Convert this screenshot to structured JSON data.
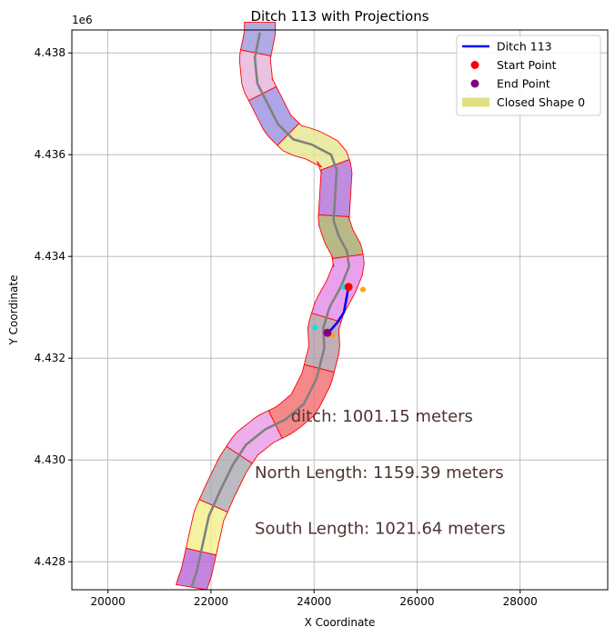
{
  "chart_data": {
    "type": "line",
    "title": "Ditch 113 with Projections",
    "xlabel": "X Coordinate",
    "ylabel": "Y Coordinate",
    "y_offset_label": "1e6",
    "xlim": [
      19300,
      29700
    ],
    "ylim": [
      4.42745,
      4.43845
    ],
    "y_multiplier": 1000000,
    "grid": true,
    "x_ticks": [
      20000,
      22000,
      24000,
      26000,
      28000
    ],
    "x_tick_labels": [
      "20000",
      "22000",
      "24000",
      "26000",
      "28000"
    ],
    "y_ticks": [
      4.428,
      4.43,
      4.432,
      4.434,
      4.436,
      4.438
    ],
    "y_tick_labels": [
      "4.428",
      "4.430",
      "4.432",
      "4.434",
      "4.436",
      "4.438"
    ],
    "legend_position": "top-right",
    "legend": [
      {
        "label": "Ditch 113",
        "kind": "line",
        "color": "#0000ff"
      },
      {
        "label": "Start Point",
        "kind": "point",
        "color": "#ff0000"
      },
      {
        "label": "End Point",
        "kind": "point",
        "color": "#800080"
      },
      {
        "label": "Closed Shape 0",
        "kind": "patch",
        "color": "#e0e080"
      }
    ],
    "centerline": [
      [
        21620,
        4.4275
      ],
      [
        21720,
        4.4278
      ],
      [
        21830,
        4.4283
      ],
      [
        21960,
        4.4289
      ],
      [
        22180,
        4.4294
      ],
      [
        22420,
        4.4299
      ],
      [
        22680,
        4.4303
      ],
      [
        23050,
        4.4306
      ],
      [
        23450,
        4.4308
      ],
      [
        23800,
        4.4311
      ],
      [
        24050,
        4.4316
      ],
      [
        24200,
        4.4322
      ],
      [
        24180,
        4.4326
      ],
      [
        24300,
        4.433
      ],
      [
        24520,
        4.4334
      ],
      [
        24680,
        4.4338
      ],
      [
        24640,
        4.4341
      ],
      [
        24480,
        4.4344
      ],
      [
        24380,
        4.4347
      ],
      [
        24410,
        4.4352
      ],
      [
        24440,
        4.4357
      ],
      [
        24330,
        4.436
      ],
      [
        23950,
        4.4362
      ],
      [
        23600,
        4.4363
      ],
      [
        23300,
        4.4366
      ],
      [
        23100,
        4.437
      ],
      [
        22900,
        4.4374
      ],
      [
        22850,
        4.4379
      ],
      [
        22950,
        4.4384
      ]
    ],
    "segments": [
      {
        "y_from": 4.4275,
        "y_to": 4.4282,
        "color": "#b566d6"
      },
      {
        "y_from": 4.4282,
        "y_to": 4.4291,
        "color": "#f2f08a"
      },
      {
        "y_from": 4.4291,
        "y_to": 4.4301,
        "color": "#a9a9b0"
      },
      {
        "y_from": 4.4301,
        "y_to": 4.4307,
        "color": "#e89ae6"
      },
      {
        "y_from": 4.4307,
        "y_to": 4.4318,
        "color": "#f26b6b"
      },
      {
        "y_from": 4.4318,
        "y_to": 4.4328,
        "color": "#b39aa8"
      },
      {
        "y_from": 4.4328,
        "y_to": 4.434,
        "color": "#e58ae8"
      },
      {
        "y_from": 4.434,
        "y_to": 4.4348,
        "color": "#a8a86a"
      },
      {
        "y_from": 4.4348,
        "y_to": 4.4358,
        "color": "#b06fd6"
      },
      {
        "y_from": 4.4358,
        "y_to": 4.4364,
        "color": "#e6e690"
      },
      {
        "y_from": 4.4364,
        "y_to": 4.4372,
        "color": "#9a8fe0"
      },
      {
        "y_from": 4.4372,
        "y_to": 4.438,
        "color": "#e6b3d9"
      },
      {
        "y_from": 4.438,
        "y_to": 4.4386,
        "color": "#9b96dc"
      }
    ],
    "ditch_line": [
      [
        24670,
        4.4334
      ],
      [
        24580,
        4.4329
      ],
      [
        24450,
        4.4327
      ],
      [
        24280,
        4.4325
      ]
    ],
    "start_point": [
      24670,
      4.4334
    ],
    "end_point": [
      24260,
      4.4325
    ],
    "projection_points": [
      {
        "x": 24580,
        "y": 4.4334,
        "color": "#00e5ee"
      },
      {
        "x": 24950,
        "y": 4.43335,
        "color": "#ffa500"
      },
      {
        "x": 24020,
        "y": 4.4326,
        "color": "#00e5ee"
      },
      {
        "x": 24350,
        "y": 4.43245,
        "color": "#ffa500"
      }
    ],
    "annotations": [
      {
        "text": "ditch: 1001.15 meters",
        "x": 23550,
        "y": 4.43075
      },
      {
        "text": "North Length: 1159.39 meters",
        "x": 22850,
        "y": 4.42965
      },
      {
        "text": "South Length: 1021.64 meters",
        "x": 22850,
        "y": 4.42855
      }
    ]
  }
}
